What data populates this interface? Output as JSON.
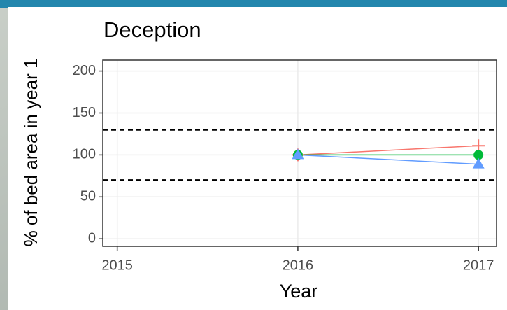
{
  "chart_data": {
    "type": "line",
    "title": "Deception",
    "xlabel": "Year",
    "ylabel": "% of bed area in year 1",
    "x": [
      2015,
      2016,
      2017
    ],
    "series": [
      {
        "color": "#f8766d",
        "marker": "plus",
        "values": [
          null,
          100,
          111
        ]
      },
      {
        "color": "#00ba38",
        "marker": "circle",
        "values": [
          null,
          100,
          100
        ]
      },
      {
        "color": "#619cff",
        "marker": "triangle",
        "values": [
          null,
          100,
          89
        ]
      }
    ],
    "hlines": [
      130,
      70
    ],
    "xlim": [
      2014.92,
      2017.1
    ],
    "xticks": [
      2015,
      2016,
      2017
    ],
    "ylim": [
      -9,
      213
    ],
    "yticks": [
      0,
      50,
      100,
      150,
      200
    ],
    "grid": true
  }
}
